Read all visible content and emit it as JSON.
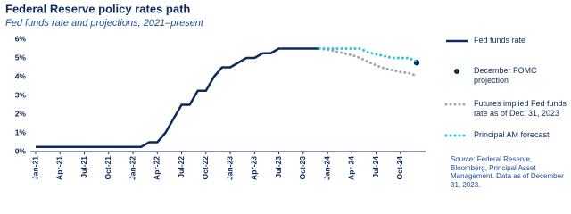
{
  "chart_data": {
    "type": "line",
    "title": "Federal Reserve policy rates path",
    "subtitle": "Fed funds rate and projections, 2021–present",
    "source": "Source: Federal Reserve, Bloomberg, Principal Asset Management. Data as of December 31, 2023.",
    "categories": [
      "Jan-21",
      null,
      null,
      "Apr-21",
      null,
      null,
      "Jul-21",
      null,
      null,
      "Oct-21",
      null,
      null,
      "Jan-22",
      null,
      null,
      "Apr-22",
      null,
      null,
      "Jul-22",
      null,
      null,
      "Oct-22",
      null,
      null,
      "Jan-23",
      null,
      null,
      "Apr-23",
      null,
      null,
      "Jul-23",
      null,
      null,
      "Oct-23",
      null,
      null,
      "Jan-24",
      null,
      null,
      "Apr-24",
      null,
      null,
      "Jul-24",
      null,
      null,
      "Oct-24",
      null,
      null
    ],
    "ylim": [
      0,
      6
    ],
    "yticks": [
      {
        "value": 0,
        "label": "0%"
      },
      {
        "value": 1,
        "label": "1%"
      },
      {
        "value": 2,
        "label": "2%"
      },
      {
        "value": 3,
        "label": "3%"
      },
      {
        "value": 4,
        "label": "4%"
      },
      {
        "value": 5,
        "label": "5%"
      },
      {
        "value": 6,
        "label": "6%"
      }
    ],
    "grid": false,
    "series": [
      {
        "name": "Fed funds rate",
        "color": "#0d2a5c",
        "style": "line",
        "values": [
          0.25,
          0.25,
          0.25,
          0.25,
          0.25,
          0.25,
          0.25,
          0.25,
          0.25,
          0.25,
          0.25,
          0.25,
          0.25,
          0.25,
          0.5,
          0.5,
          1,
          1.75,
          2.5,
          2.5,
          3.25,
          3.25,
          4,
          4.5,
          4.5,
          4.75,
          5,
          5,
          5.25,
          5.25,
          5.5,
          5.5,
          5.5,
          5.5,
          5.5,
          5.5,
          null,
          null,
          null,
          null,
          null,
          null,
          null,
          null,
          null,
          null,
          null,
          null
        ]
      },
      {
        "name": "December FOMC projection",
        "color": "#0d2a5c",
        "style": "marker",
        "values": [
          null,
          null,
          null,
          null,
          null,
          null,
          null,
          null,
          null,
          null,
          null,
          null,
          null,
          null,
          null,
          null,
          null,
          null,
          null,
          null,
          null,
          null,
          null,
          null,
          null,
          null,
          null,
          null,
          null,
          null,
          null,
          null,
          null,
          null,
          null,
          null,
          null,
          null,
          null,
          null,
          null,
          null,
          null,
          null,
          null,
          null,
          null,
          4.75
        ]
      },
      {
        "name": "Futures implied Fed funds rate as of Dec. 31, 2023",
        "color": "#a6a6a6",
        "style": "dotted",
        "values": [
          null,
          null,
          null,
          null,
          null,
          null,
          null,
          null,
          null,
          null,
          null,
          null,
          null,
          null,
          null,
          null,
          null,
          null,
          null,
          null,
          null,
          null,
          null,
          null,
          null,
          null,
          null,
          null,
          null,
          null,
          null,
          null,
          null,
          null,
          null,
          5.5,
          5.45,
          5.35,
          5.25,
          5.15,
          5.0,
          4.8,
          4.6,
          4.45,
          4.35,
          4.25,
          4.2,
          4.05
        ]
      },
      {
        "name": "Principal AM forecast",
        "color": "#2bc0e4",
        "style": "dotted",
        "values": [
          null,
          null,
          null,
          null,
          null,
          null,
          null,
          null,
          null,
          null,
          null,
          null,
          null,
          null,
          null,
          null,
          null,
          null,
          null,
          null,
          null,
          null,
          null,
          null,
          null,
          null,
          null,
          null,
          null,
          null,
          null,
          null,
          null,
          null,
          null,
          5.5,
          5.5,
          5.5,
          5.5,
          5.5,
          5.5,
          5.3,
          5.2,
          5.1,
          5.0,
          5.0,
          5.0,
          4.8
        ]
      }
    ]
  }
}
